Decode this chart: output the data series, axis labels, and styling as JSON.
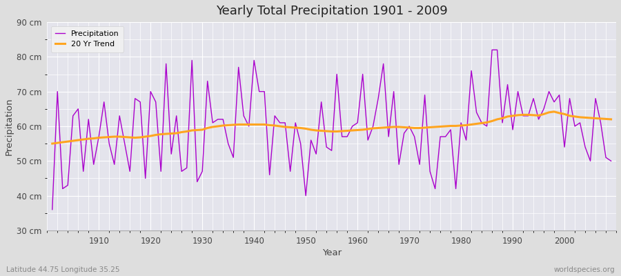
{
  "title": "Yearly Total Precipitation 1901 - 2009",
  "xlabel": "Year",
  "ylabel": "Precipitation",
  "subtitle": "Latitude 44.75 Longitude 35.25",
  "watermark": "worldspecies.org",
  "years": [
    1901,
    1902,
    1903,
    1904,
    1905,
    1906,
    1907,
    1908,
    1909,
    1910,
    1911,
    1912,
    1913,
    1914,
    1915,
    1916,
    1917,
    1918,
    1919,
    1920,
    1921,
    1922,
    1923,
    1924,
    1925,
    1926,
    1927,
    1928,
    1929,
    1930,
    1931,
    1932,
    1933,
    1934,
    1935,
    1936,
    1937,
    1938,
    1939,
    1940,
    1941,
    1942,
    1943,
    1944,
    1945,
    1946,
    1947,
    1948,
    1949,
    1950,
    1951,
    1952,
    1953,
    1954,
    1955,
    1956,
    1957,
    1958,
    1959,
    1960,
    1961,
    1962,
    1963,
    1964,
    1965,
    1966,
    1967,
    1968,
    1969,
    1970,
    1971,
    1972,
    1973,
    1974,
    1975,
    1976,
    1977,
    1978,
    1979,
    1980,
    1981,
    1982,
    1983,
    1984,
    1985,
    1986,
    1987,
    1988,
    1989,
    1990,
    1991,
    1992,
    1993,
    1994,
    1995,
    1996,
    1997,
    1998,
    1999,
    2000,
    2001,
    2002,
    2003,
    2004,
    2005,
    2006,
    2007,
    2008,
    2009
  ],
  "precipitation": [
    36,
    70,
    42,
    43,
    63,
    65,
    47,
    62,
    49,
    57,
    67,
    55,
    49,
    63,
    55,
    47,
    68,
    67,
    45,
    70,
    67,
    47,
    78,
    52,
    63,
    47,
    48,
    79,
    44,
    47,
    73,
    61,
    62,
    62,
    55,
    51,
    77,
    63,
    60,
    79,
    70,
    70,
    46,
    63,
    61,
    61,
    47,
    61,
    55,
    40,
    56,
    52,
    67,
    54,
    53,
    75,
    57,
    57,
    60,
    61,
    75,
    56,
    60,
    68,
    78,
    57,
    70,
    49,
    58,
    60,
    57,
    49,
    69,
    47,
    42,
    57,
    57,
    59,
    42,
    61,
    56,
    76,
    64,
    61,
    60,
    82,
    82,
    61,
    72,
    59,
    70,
    63,
    63,
    68,
    62,
    65,
    70,
    67,
    69,
    54,
    68,
    60,
    61,
    54,
    50,
    68,
    61,
    51,
    50
  ],
  "trend": [
    55.0,
    55.2,
    55.4,
    55.6,
    55.8,
    56.0,
    56.2,
    56.4,
    56.5,
    56.7,
    56.8,
    56.9,
    57.0,
    57.0,
    56.9,
    56.8,
    56.7,
    56.8,
    57.0,
    57.2,
    57.5,
    57.7,
    57.8,
    57.9,
    58.0,
    58.3,
    58.5,
    58.8,
    58.9,
    59.0,
    59.5,
    59.8,
    60.0,
    60.2,
    60.3,
    60.4,
    60.5,
    60.5,
    60.5,
    60.5,
    60.5,
    60.5,
    60.3,
    60.2,
    60.0,
    59.8,
    59.7,
    59.6,
    59.5,
    59.3,
    59.0,
    58.8,
    58.7,
    58.6,
    58.5,
    58.5,
    58.6,
    58.7,
    58.8,
    58.9,
    59.0,
    59.2,
    59.4,
    59.5,
    59.6,
    59.7,
    59.8,
    59.8,
    59.7,
    59.6,
    59.5,
    59.5,
    59.6,
    59.7,
    59.8,
    59.9,
    60.0,
    60.1,
    60.1,
    60.2,
    60.3,
    60.5,
    60.7,
    60.9,
    61.1,
    61.5,
    62.0,
    62.3,
    62.8,
    63.0,
    63.2,
    63.3,
    63.3,
    63.2,
    63.1,
    63.5,
    64.0,
    64.2,
    63.8,
    63.5,
    63.0,
    62.8,
    62.6,
    62.5,
    62.4,
    62.3,
    62.2,
    62.1,
    62.0
  ],
  "ylim": [
    30,
    90
  ],
  "yticks": [
    30,
    40,
    50,
    60,
    70,
    80,
    90
  ],
  "ytick_labels": [
    "30 cm",
    "40 cm",
    "50 cm",
    "60 cm",
    "70 cm",
    "80 cm",
    "90 cm"
  ],
  "xlim": [
    1900,
    2010
  ],
  "xticks": [
    1910,
    1920,
    1930,
    1940,
    1950,
    1960,
    1970,
    1980,
    1990,
    2000
  ],
  "precipitation_color": "#AA00CC",
  "trend_color": "#FFA520",
  "fig_bg_color": "#DEDEDE",
  "plot_bg_color": "#E4E4EC",
  "grid_color": "#FFFFFF",
  "title_color": "#222222",
  "axis_label_color": "#444444",
  "tick_color": "#444444",
  "legend_bg_color": "#F2F2F2",
  "legend_edge_color": "#CCCCCC",
  "subtitle_color": "#888888",
  "watermark_color": "#888888"
}
